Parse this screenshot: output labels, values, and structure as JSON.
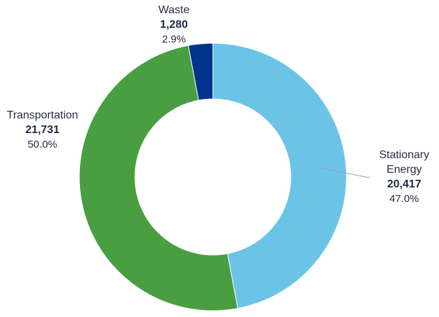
{
  "chart_data": {
    "type": "pie",
    "title": "",
    "categories": [
      "Stationary Energy",
      "Transportation",
      "Waste"
    ],
    "series": [
      {
        "values": [
          20417,
          21731,
          1280
        ],
        "percent_labels": [
          "47.0%",
          "50.0%",
          "2.9%"
        ],
        "value_labels": [
          "20,417",
          "21,731",
          "1,280"
        ]
      }
    ],
    "label_lines": [
      [
        "Stationary",
        "Energy"
      ],
      [
        "Transportation"
      ],
      [
        "Waste"
      ]
    ],
    "colors": [
      "#6bc4e6",
      "#4a9e42",
      "#00348c"
    ],
    "donut": true,
    "legend": "none"
  }
}
